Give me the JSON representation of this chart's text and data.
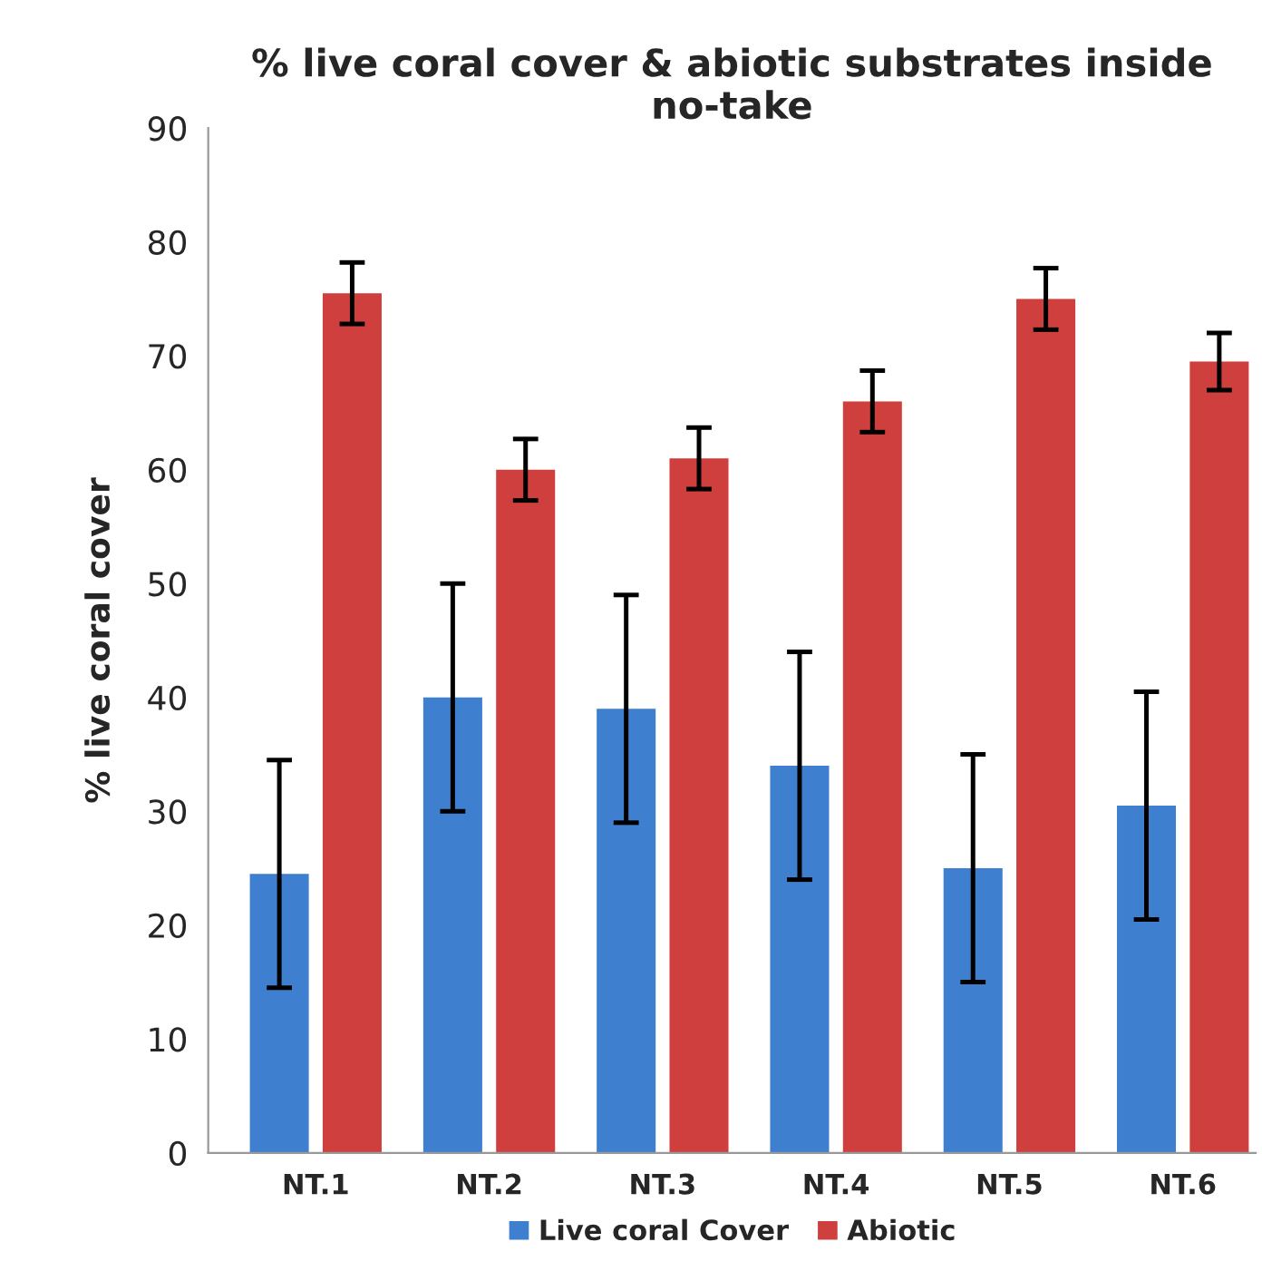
{
  "chart_data": {
    "type": "bar",
    "title": "% live coral cover & abiotic substrates inside no-take",
    "ylabel": "% live coral cover",
    "categories": [
      "NT.1",
      "NT.2",
      "NT.3",
      "NT.4",
      "NT.5",
      "NT.6"
    ],
    "series": [
      {
        "name": "Live coral Cover",
        "color": "#3f7fcf",
        "values": [
          24.5,
          40,
          39,
          34,
          25,
          30.5
        ],
        "errors": [
          10,
          10,
          10,
          10,
          10,
          10
        ]
      },
      {
        "name": "Abiotic",
        "color": "#cf3f3d",
        "values": [
          75.5,
          60,
          61,
          66,
          75,
          69.5
        ],
        "errors": [
          2.7,
          2.7,
          2.7,
          2.7,
          2.7,
          2.5
        ]
      }
    ],
    "ylim": [
      0,
      90
    ],
    "yticks": [
      0,
      10,
      20,
      30,
      40,
      50,
      60,
      70,
      80,
      90
    ],
    "grid": false,
    "legend": "bottom"
  }
}
